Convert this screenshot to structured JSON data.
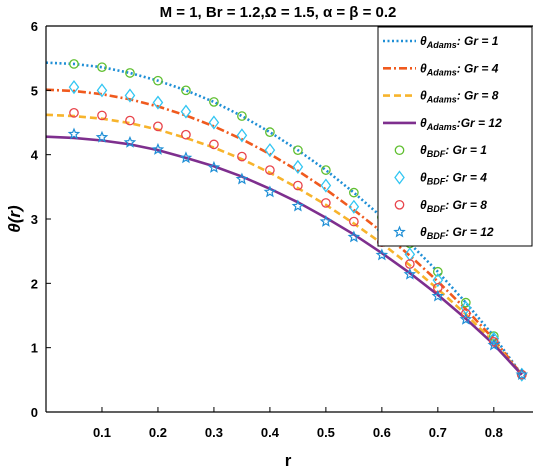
{
  "chart_data": {
    "type": "line",
    "title": "M = 1, Br = 1.2,Ω = 1.5, α = β = 0.2",
    "xlabel": "r",
    "ylabel": "θ(r)",
    "xlim": [
      0,
      0.87
    ],
    "ylim": [
      0,
      6
    ],
    "xticks": [
      "0.1",
      "0.2",
      "0.3",
      "0.4",
      "0.5",
      "0.6",
      "0.7",
      "0.8"
    ],
    "yticks": [
      "0",
      "1",
      "2",
      "3",
      "4",
      "5",
      "6"
    ],
    "legend_position": "top-right",
    "series": [
      {
        "name": "θAdams: Gr = 1",
        "theta_sub": "Adams",
        "legend_rest": ": Gr = 1",
        "style": "dotted",
        "color": "#1f8fd6",
        "x": [
          0.0,
          0.05,
          0.1,
          0.15,
          0.2,
          0.25,
          0.3,
          0.35,
          0.4,
          0.45,
          0.5,
          0.55,
          0.6,
          0.65,
          0.7,
          0.75,
          0.8,
          0.85
        ],
        "y": [
          5.43,
          5.41,
          5.36,
          5.27,
          5.15,
          5.0,
          4.82,
          4.6,
          4.35,
          4.07,
          3.76,
          3.41,
          3.03,
          2.62,
          2.18,
          1.7,
          1.18,
          0.58
        ]
      },
      {
        "name": "θAdams: Gr = 4",
        "theta_sub": "Adams",
        "legend_rest": ": Gr = 4",
        "style": "dashdot",
        "color": "#f05a1e",
        "x": [
          0.0,
          0.05,
          0.1,
          0.15,
          0.2,
          0.25,
          0.3,
          0.35,
          0.4,
          0.45,
          0.5,
          0.55,
          0.6,
          0.65,
          0.7,
          0.75,
          0.8,
          0.85
        ],
        "y": [
          5.01,
          4.99,
          4.94,
          4.86,
          4.75,
          4.61,
          4.44,
          4.24,
          4.01,
          3.75,
          3.46,
          3.14,
          2.8,
          2.43,
          2.03,
          1.6,
          1.13,
          0.58
        ]
      },
      {
        "name": "θAdams: Gr = 8",
        "theta_sub": "Adams",
        "legend_rest": ": Gr = 8",
        "style": "dashed",
        "color": "#f7b42c",
        "x": [
          0.0,
          0.05,
          0.1,
          0.15,
          0.2,
          0.25,
          0.3,
          0.35,
          0.4,
          0.45,
          0.5,
          0.55,
          0.6,
          0.65,
          0.7,
          0.75,
          0.8,
          0.85
        ],
        "y": [
          4.62,
          4.6,
          4.56,
          4.49,
          4.39,
          4.26,
          4.11,
          3.93,
          3.72,
          3.48,
          3.22,
          2.93,
          2.62,
          2.28,
          1.91,
          1.52,
          1.08,
          0.58
        ]
      },
      {
        "name": "θAdams:Gr = 12",
        "theta_sub": "Adams",
        "legend_rest": ":Gr = 12",
        "style": "solid",
        "color": "#7e2f8e",
        "x": [
          0.0,
          0.05,
          0.1,
          0.15,
          0.2,
          0.25,
          0.3,
          0.35,
          0.4,
          0.45,
          0.5,
          0.55,
          0.6,
          0.65,
          0.7,
          0.75,
          0.8,
          0.85
        ],
        "y": [
          4.28,
          4.26,
          4.22,
          4.16,
          4.07,
          3.95,
          3.82,
          3.66,
          3.47,
          3.26,
          3.02,
          2.76,
          2.47,
          2.16,
          1.82,
          1.45,
          1.05,
          0.58
        ]
      },
      {
        "name": "θBDF: Gr = 1",
        "theta_sub": "BDF",
        "legend_rest": ": Gr = 1",
        "marker": "circle",
        "color": "#5fbf2f",
        "x": [
          0.0,
          0.05,
          0.1,
          0.15,
          0.2,
          0.25,
          0.3,
          0.35,
          0.4,
          0.45,
          0.5,
          0.55,
          0.6,
          0.65,
          0.7,
          0.75,
          0.8,
          0.85
        ],
        "y": [
          5.43,
          5.41,
          5.36,
          5.27,
          5.15,
          5.0,
          4.82,
          4.6,
          4.35,
          4.07,
          3.76,
          3.41,
          3.03,
          2.62,
          2.18,
          1.7,
          1.18,
          0.58
        ]
      },
      {
        "name": "θBDF: Gr = 4",
        "theta_sub": "BDF",
        "legend_rest": ": Gr = 4",
        "marker": "diamond",
        "color": "#33c6f2",
        "x": [
          0.0,
          0.05,
          0.1,
          0.15,
          0.2,
          0.25,
          0.3,
          0.35,
          0.4,
          0.45,
          0.5,
          0.55,
          0.6,
          0.65,
          0.7,
          0.75,
          0.8,
          0.85
        ],
        "y": [
          5.07,
          5.05,
          5.0,
          4.92,
          4.81,
          4.67,
          4.5,
          4.3,
          4.07,
          3.81,
          3.52,
          3.19,
          2.83,
          2.45,
          2.05,
          1.62,
          1.14,
          0.58
        ]
      },
      {
        "name": "θBDF: Gr = 8",
        "theta_sub": "BDF",
        "legend_rest": ": Gr = 8",
        "marker": "circle",
        "color": "#e8434a",
        "x": [
          0.0,
          0.05,
          0.1,
          0.15,
          0.2,
          0.25,
          0.3,
          0.35,
          0.4,
          0.45,
          0.5,
          0.55,
          0.6,
          0.65,
          0.7,
          0.75,
          0.8,
          0.85
        ],
        "y": [
          4.67,
          4.65,
          4.61,
          4.53,
          4.44,
          4.31,
          4.16,
          3.97,
          3.76,
          3.52,
          3.25,
          2.96,
          2.64,
          2.3,
          1.93,
          1.53,
          1.09,
          0.58
        ]
      },
      {
        "name": "θBDF: Gr = 12",
        "theta_sub": "BDF",
        "legend_rest": ": Gr = 12",
        "marker": "star",
        "color": "#1f8fd6",
        "x": [
          0.0,
          0.05,
          0.1,
          0.15,
          0.2,
          0.25,
          0.3,
          0.35,
          0.4,
          0.45,
          0.5,
          0.55,
          0.6,
          0.65,
          0.7,
          0.75,
          0.8,
          0.85
        ],
        "y": [
          4.34,
          4.32,
          4.27,
          4.19,
          4.08,
          3.95,
          3.8,
          3.62,
          3.42,
          3.2,
          2.96,
          2.72,
          2.44,
          2.14,
          1.8,
          1.44,
          1.04,
          0.58
        ]
      }
    ]
  }
}
